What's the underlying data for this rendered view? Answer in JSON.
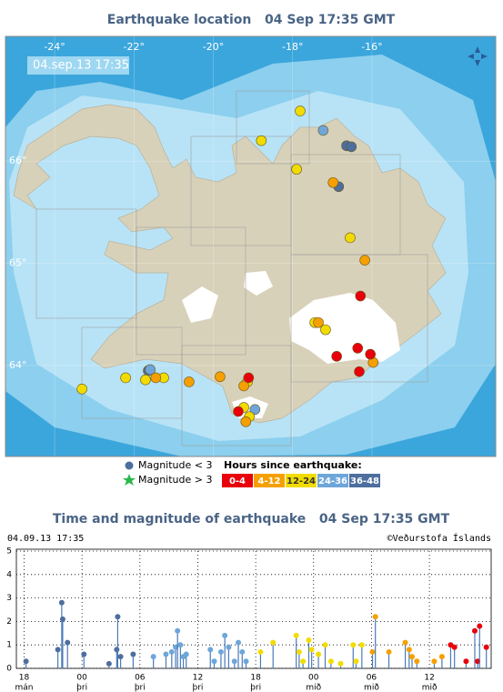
{
  "map": {
    "title": "Earthquake location   04 Sep 17:35 GMT",
    "timestamp": "04.sep.13 17:35",
    "lonlim": [
      -25.24,
      -12.88
    ],
    "latlim": [
      63.11,
      67.22
    ],
    "lonticks": [
      {
        "value": -24,
        "label": "-24°"
      },
      {
        "value": -22,
        "label": "-22°"
      },
      {
        "value": -20,
        "label": "-20°"
      },
      {
        "value": -18,
        "label": "-18°"
      },
      {
        "value": -16,
        "label": "-16°"
      }
    ],
    "latticks": [
      {
        "value": 64,
        "label": "64°"
      },
      {
        "value": 65,
        "label": "65°"
      },
      {
        "value": 66,
        "label": "66°"
      }
    ],
    "legend_small": "Magnitude < 3",
    "legend_large": "Magnitude > 3",
    "legend_hours_title": "Hours since earthquake:",
    "points": [
      {
        "lon": [
          -16.29,
          -16.89,
          -16.36,
          -16.04,
          -16.32,
          -19.11,
          -19.37
        ],
        "lat": [
          64.68,
          64.09,
          64.17,
          64.11,
          63.94,
          63.88,
          63.55
        ]
      },
      {
        "lon": [
          -16.98,
          -16.18,
          -20.61,
          -19.83,
          -19.23,
          -19.18,
          -15.97,
          -17.35,
          -21.45
        ],
        "lat": [
          65.79,
          65.03,
          63.84,
          63.89,
          63.8,
          63.45,
          64.03,
          64.42,
          63.88
        ]
      },
      {
        "lon": [
          -17.81,
          -18.79,
          -17.9,
          -16.55,
          -23.31,
          -22.21,
          -21.71,
          -21.25,
          -19.14,
          -19.23,
          -19.09,
          -17.17,
          -17.44
        ],
        "lat": [
          66.49,
          66.2,
          65.92,
          65.25,
          63.77,
          63.88,
          63.86,
          63.88,
          63.84,
          63.59,
          63.5,
          64.35,
          64.42
        ]
      },
      {
        "lon": [
          -17.23,
          -21.59,
          -18.95
        ],
        "lat": [
          66.3,
          63.96,
          63.57
        ]
      },
      {
        "lon": [
          -16.64,
          -16.52,
          -16.84,
          -21.64
        ],
        "lat": [
          66.15,
          66.14,
          65.75,
          63.95
        ]
      }
    ]
  },
  "chart_data": {
    "type": "stem",
    "title": "Time and magnitude of earthquake   04 Sep 17:35 GMT",
    "timestamp": "04.09.13 17:35",
    "credit": "©Veðurstofa Íslands",
    "xlim": [
      17.2,
      66.4
    ],
    "ylim": [
      0,
      5
    ],
    "xticks": [
      18,
      {
        "value": 24,
        "label": "00"
      },
      {
        "value": 30,
        "label": "06"
      },
      {
        "value": 36,
        "label": "12"
      },
      {
        "value": 42,
        "label": "18"
      },
      {
        "value": 48,
        "label": "00"
      },
      {
        "value": 54,
        "label": "06"
      },
      {
        "value": 60,
        "label": "12"
      }
    ],
    "xtick_days": [
      "mán",
      "þri",
      "þri",
      "þri",
      "þri",
      "mið",
      "mið",
      "mið"
    ],
    "yticks": [
      0,
      1,
      2,
      3,
      4,
      5
    ],
    "grid": true,
    "stem_color": "#4a7ab8",
    "series": [
      {
        "name": "0-4",
        "color": "#e8000b",
        "x": [
          62.2,
          62.6,
          63.8,
          64.7,
          65.0,
          65.2,
          65.9
        ],
        "values": [
          1.0,
          0.9,
          0.3,
          1.6,
          0.3,
          1.8,
          0.9
        ]
      },
      {
        "name": "4-12",
        "color": "#f5a000",
        "x": [
          54.1,
          54.4,
          55.8,
          57.5,
          57.9,
          58.2,
          58.7,
          60.5,
          61.3
        ],
        "values": [
          0.7,
          2.2,
          0.7,
          1.1,
          0.8,
          0.5,
          0.3,
          0.3,
          0.5
        ]
      },
      {
        "name": "12-24",
        "color": "#f2dc00",
        "x": [
          42.5,
          43.8,
          46.2,
          46.5,
          46.9,
          47.5,
          47.8,
          48.5,
          49.2,
          49.8,
          50.8,
          52.1,
          52.4,
          53.0
        ],
        "values": [
          0.7,
          1.1,
          1.4,
          0.7,
          0.3,
          1.2,
          0.8,
          0.6,
          1.0,
          0.3,
          0.2,
          1.0,
          0.3,
          1.0
        ]
      },
      {
        "name": "24-36",
        "color": "#6ea6da",
        "x": [
          31.4,
          32.7,
          33.3,
          33.7,
          33.9,
          34.2,
          34.5,
          34.8,
          37.3,
          37.7,
          38.4,
          38.8,
          39.2,
          39.8,
          40.2,
          40.6,
          41.0
        ],
        "values": [
          0.5,
          0.6,
          0.7,
          0.9,
          1.6,
          1.0,
          0.5,
          0.6,
          0.8,
          0.3,
          0.7,
          1.4,
          0.9,
          0.3,
          1.1,
          0.7,
          0.3
        ]
      },
      {
        "name": "36-48",
        "color": "#4d6e9e",
        "x": [
          18.2,
          21.5,
          21.9,
          22.0,
          22.5,
          24.2,
          26.8,
          27.6,
          27.7,
          28.0,
          29.3
        ],
        "values": [
          0.3,
          0.8,
          2.8,
          2.1,
          1.1,
          0.6,
          0.2,
          0.8,
          2.2,
          0.5,
          0.6
        ]
      }
    ]
  }
}
